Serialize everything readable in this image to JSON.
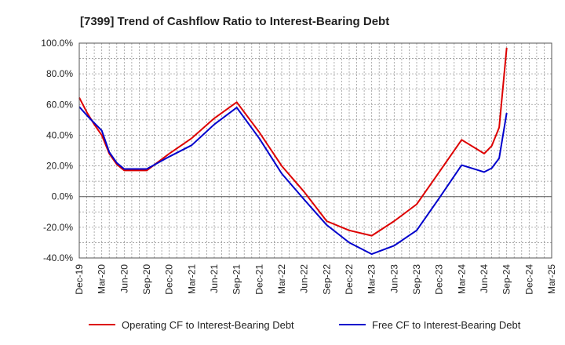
{
  "chart_data": {
    "type": "line",
    "title": "[7399]  Trend of Cashflow Ratio to Interest-Bearing Debt",
    "xlabel": "",
    "ylabel": "",
    "ylim": [
      -40,
      100
    ],
    "yticks": [
      -40,
      -20,
      0,
      20,
      40,
      60,
      80,
      100
    ],
    "ytick_labels": [
      "-40.0%",
      "-20.0%",
      "0.0%",
      "20.0%",
      "40.0%",
      "60.0%",
      "80.0%",
      "100.0%"
    ],
    "xticks": [
      "2019-12",
      "2020-03",
      "2020-06",
      "2020-09",
      "2020-12",
      "2021-03",
      "2021-06",
      "2021-09",
      "2021-12",
      "2022-03",
      "2022-06",
      "2022-09",
      "2022-12",
      "2023-03",
      "2023-06",
      "2023-09",
      "2023-12",
      "2024-03",
      "2024-06",
      "2024-09",
      "2024-12",
      "2025-03"
    ],
    "xtick_labels": [
      "Dec-19",
      "Mar-20",
      "Jun-20",
      "Sep-20",
      "Dec-20",
      "Mar-21",
      "Jun-21",
      "Sep-21",
      "Dec-21",
      "Mar-22",
      "Jun-22",
      "Sep-22",
      "Dec-22",
      "Mar-23",
      "Jun-23",
      "Sep-23",
      "Dec-23",
      "Mar-24",
      "Jun-24",
      "Sep-24",
      "Dec-24",
      "Mar-25"
    ],
    "grid": true,
    "legend_position": "bottom",
    "series": [
      {
        "name": "Operating CF to Interest-Bearing Debt",
        "color": "#dd0000",
        "x": [
          "2019-12",
          "2020-01",
          "2020-02",
          "2020-03",
          "2020-04",
          "2020-05",
          "2020-06",
          "2020-09",
          "2020-12",
          "2021-03",
          "2021-06",
          "2021-09",
          "2021-12",
          "2022-03",
          "2022-06",
          "2022-09",
          "2022-12",
          "2023-03",
          "2023-06",
          "2023-09",
          "2023-12",
          "2024-03",
          "2024-06",
          "2024-07",
          "2024-08",
          "2024-09"
        ],
        "values": [
          64.5,
          55,
          47,
          40,
          28,
          21,
          17,
          17,
          28,
          38,
          51,
          61.5,
          42,
          20,
          3,
          -16,
          -22,
          -25.5,
          -16,
          -5,
          16,
          37,
          28,
          33,
          45,
          97
        ]
      },
      {
        "name": "Free CF to Interest-Bearing Debt",
        "color": "#0000cc",
        "x": [
          "2019-12",
          "2020-01",
          "2020-02",
          "2020-03",
          "2020-04",
          "2020-05",
          "2020-06",
          "2020-09",
          "2020-12",
          "2021-03",
          "2021-06",
          "2021-09",
          "2021-12",
          "2022-03",
          "2022-06",
          "2022-09",
          "2022-12",
          "2023-03",
          "2023-06",
          "2023-09",
          "2023-12",
          "2024-03",
          "2024-06",
          "2024-07",
          "2024-08",
          "2024-09"
        ],
        "values": [
          58.5,
          53,
          48,
          43,
          29,
          22,
          18,
          18,
          26,
          33.5,
          47,
          58,
          38,
          15,
          -2,
          -18.5,
          -30,
          -37.5,
          -32,
          -22,
          -1,
          20.5,
          16,
          18.5,
          25,
          54.5
        ]
      }
    ]
  }
}
